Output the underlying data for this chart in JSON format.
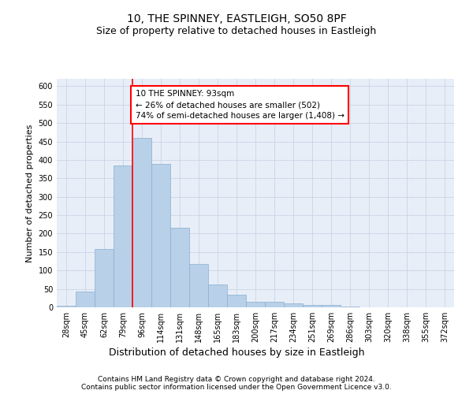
{
  "title": "10, THE SPINNEY, EASTLEIGH, SO50 8PF",
  "subtitle": "Size of property relative to detached houses in Eastleigh",
  "xlabel": "Distribution of detached houses by size in Eastleigh",
  "ylabel": "Number of detached properties",
  "bar_values": [
    5,
    42,
    158,
    385,
    460,
    390,
    215,
    118,
    63,
    35,
    14,
    15,
    10,
    6,
    6,
    2,
    1,
    1,
    0,
    0,
    0
  ],
  "all_labels": [
    "28sqm",
    "45sqm",
    "62sqm",
    "79sqm",
    "96sqm",
    "114sqm",
    "131sqm",
    "148sqm",
    "165sqm",
    "183sqm",
    "200sqm",
    "217sqm",
    "234sqm",
    "251sqm",
    "269sqm",
    "286sqm",
    "303sqm",
    "320sqm",
    "338sqm",
    "355sqm",
    "372sqm"
  ],
  "bar_color": "#b8d0e8",
  "bar_edge_color": "#8ab0d0",
  "grid_color": "#c8d4e4",
  "bg_color": "#e8eef8",
  "vline_x": 4,
  "vline_color": "red",
  "annotation_text": "10 THE SPINNEY: 93sqm\n← 26% of detached houses are smaller (502)\n74% of semi-detached houses are larger (1,408) →",
  "annotation_box_color": "white",
  "annotation_box_edge": "red",
  "ylim": [
    0,
    620
  ],
  "yticks": [
    0,
    50,
    100,
    150,
    200,
    250,
    300,
    350,
    400,
    450,
    500,
    550,
    600
  ],
  "footer1": "Contains HM Land Registry data © Crown copyright and database right 2024.",
  "footer2": "Contains public sector information licensed under the Open Government Licence v3.0.",
  "title_fontsize": 10,
  "subtitle_fontsize": 9,
  "xlabel_fontsize": 9,
  "ylabel_fontsize": 8,
  "tick_fontsize": 7,
  "annotation_fontsize": 7.5,
  "footer_fontsize": 6.5
}
